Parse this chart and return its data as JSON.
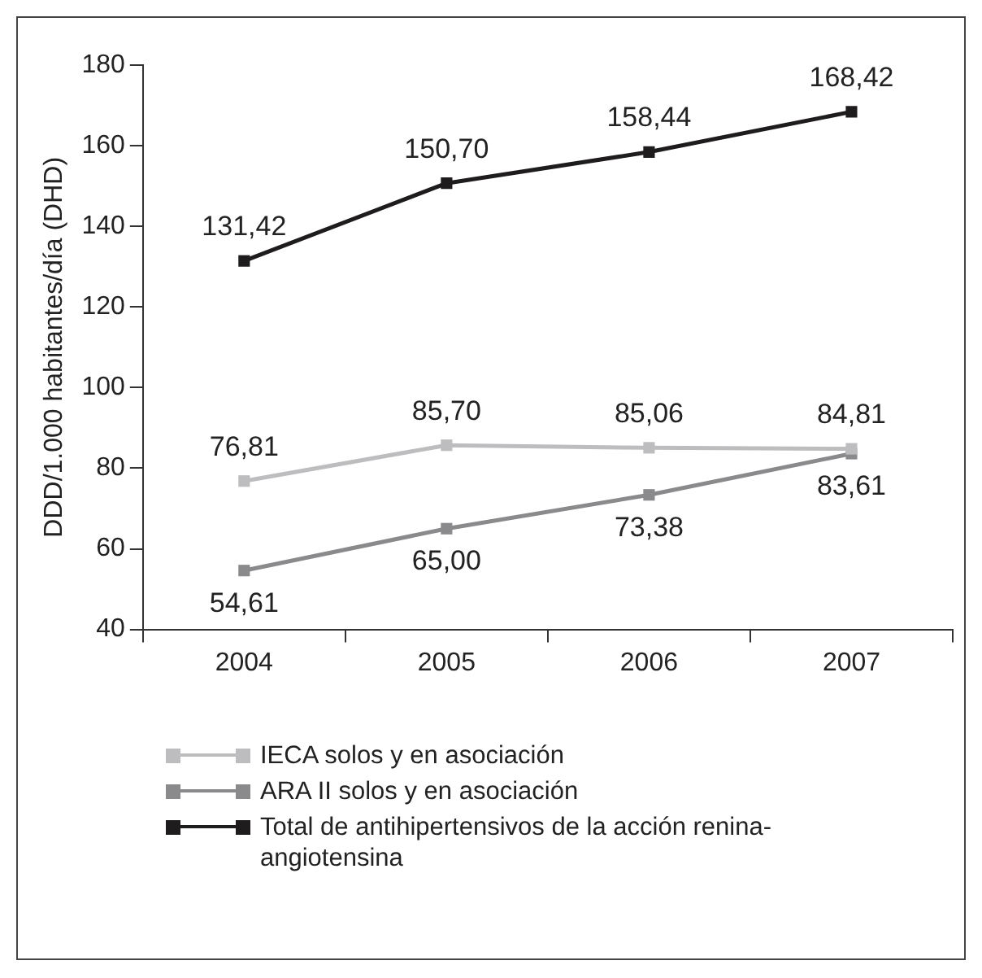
{
  "chart_data": {
    "type": "line",
    "ylabel": "DDD/1.000 habitantes/día (DHD)",
    "categories": [
      "2004",
      "2005",
      "2006",
      "2007"
    ],
    "series": [
      {
        "name": "IECA solos y en asociación",
        "color": "#bdbdbf",
        "values": [
          76.81,
          85.7,
          85.06,
          84.81
        ],
        "value_labels": [
          "76,81",
          "85,70",
          "85,06",
          "84,81"
        ]
      },
      {
        "name": "ARA II solos y en asociación",
        "color": "#8a8a8c",
        "values": [
          54.61,
          65.0,
          73.38,
          83.61
        ],
        "value_labels": [
          "54,61",
          "65,00",
          "73,38",
          "83,61"
        ]
      },
      {
        "name": "Total de antihipertensivos de la acción renina-angiotensina",
        "color": "#1e1c1c",
        "values": [
          131.42,
          150.7,
          158.44,
          168.42
        ],
        "value_labels": [
          "131,42",
          "150,70",
          "158,44",
          "168,42"
        ]
      }
    ],
    "ylim": [
      40,
      180
    ],
    "yticks": [
      40,
      60,
      80,
      100,
      120,
      140,
      160,
      180
    ],
    "grid": false,
    "legend": "bottom",
    "marker": "square",
    "line_style": "solid"
  }
}
